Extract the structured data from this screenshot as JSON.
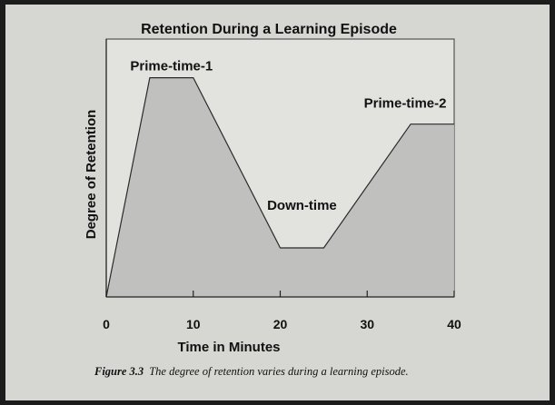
{
  "chart_data": {
    "type": "area",
    "title": "Retention During a Learning Episode",
    "xlabel": "Time in Minutes",
    "ylabel": "Degree of Retention",
    "xlim": [
      0,
      40
    ],
    "xticks": [
      0,
      10,
      20,
      30,
      40
    ],
    "ylim": [
      0,
      100
    ],
    "y_tick_labels": false,
    "grid": false,
    "legend": "none",
    "fill_color": "#bdbdbb",
    "line_color": "#2a2a2a",
    "series": [
      {
        "x": [
          0,
          5,
          10,
          20,
          25,
          35,
          40
        ],
        "y": [
          0,
          85,
          85,
          19,
          19,
          67,
          67
        ]
      }
    ],
    "annotations": [
      {
        "text": "Prime-time-1",
        "x": 7.5,
        "y": 85
      },
      {
        "text": "Down-time",
        "x": 22.5,
        "y": 19
      },
      {
        "text": "Prime-time-2",
        "x": 37.5,
        "y": 67
      }
    ]
  },
  "figure": {
    "caption_label": "Figure 3.3",
    "caption_text": "The degree of retention varies during a learning episode."
  },
  "colors": {
    "page_background": "#d6d6d3",
    "plot_background": "#e2e2df"
  }
}
